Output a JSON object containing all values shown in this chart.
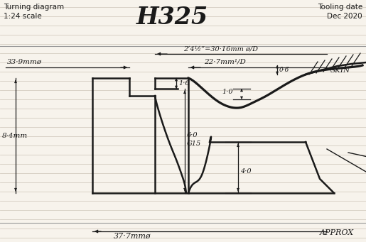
{
  "title": "H325",
  "subtitle_left1": "Turning diagram",
  "subtitle_left2": "1:24 scale",
  "subtitle_right1": "Tooling date",
  "subtitle_right2": "Dec 2020",
  "background_color": "#f7f3ec",
  "line_color": "#1a1a1a",
  "dim_color": "#1a1a1a",
  "ruled_line_color": "#d4ccc0",
  "annotations": {
    "dim_30_16": "2‘4½”=30·16mm ø/D",
    "dim_33_9": "33·9mmø",
    "dim_22_7": "22·7mm¹/D",
    "dim_0_6": "0·6",
    "dim_1_0": "1·0",
    "dim_1_6": "1·6",
    "dim_6_0": "6·0",
    "dim_g15": "G15",
    "dim_4_0": "4·0",
    "dim_8_4": "8·4mm",
    "dim_37_7": "37·7mmø",
    "approx": "APPROX",
    "skin": "SKIN"
  },
  "figsize": [
    5.15,
    3.41
  ],
  "dpi": 100
}
